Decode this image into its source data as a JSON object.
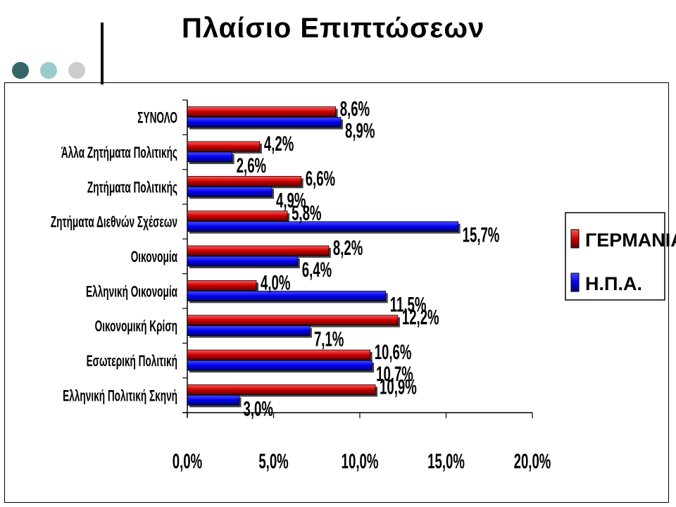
{
  "header": {
    "title": "Πλαίσιο Επιπτώσεων"
  },
  "colors": {
    "dot1": "#336666",
    "dot2": "#99cccc",
    "dot3": "#cccccc",
    "germany": "#cc0000",
    "usa": "#0000ff"
  },
  "chart_data": {
    "type": "bar",
    "orientation": "horizontal",
    "categories": [
      "ΣΥΝΟΛΟ",
      "Άλλα Ζητήματα Πολιτικής",
      "Ζητήματα Πολιτικής",
      "Ζητήματα Διεθνών Σχέσεων",
      "Οικονομία",
      "Ελληνική Οικονομία",
      "Οικονομική Κρίση",
      "Εσωτερική Πολιτική",
      "Ελληνική Πολιτική Σκηνή"
    ],
    "series": [
      {
        "name": "ΓΕΡΜΑΝΙΑ",
        "values": [
          8.6,
          4.2,
          6.6,
          5.8,
          8.2,
          4.0,
          12.2,
          10.6,
          10.9
        ],
        "labels": [
          "8,6%",
          "4,2%",
          "6,6%",
          "5,8%",
          "8,2%",
          "4,0%",
          "12,2%",
          "10,6%",
          "10,9%"
        ]
      },
      {
        "name": "Η.Π.Α.",
        "values": [
          8.9,
          2.6,
          4.9,
          15.7,
          6.4,
          11.5,
          7.1,
          10.7,
          3.0
        ],
        "labels": [
          "8,9%",
          "2,6%",
          "4,9%",
          "15,7%",
          "6,4%",
          "11,5%",
          "7,1%",
          "10,7%",
          "3,0%"
        ]
      }
    ],
    "xlim": [
      0,
      20
    ],
    "xticks": [
      0,
      5,
      10,
      15,
      20
    ],
    "xtick_labels": [
      "0,0%",
      "5,0%",
      "10,0%",
      "15,0%",
      "20,0%"
    ],
    "legend": {
      "position": "right"
    },
    "grid": false
  }
}
